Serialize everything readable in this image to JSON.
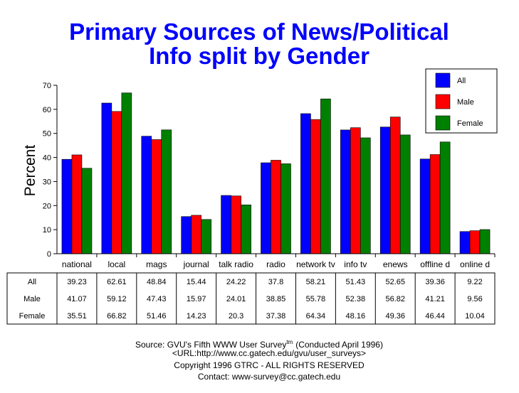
{
  "chart_data": {
    "type": "bar",
    "title_line1": "Primary Sources of News/Political",
    "title_line2": "Info split by Gender",
    "ylabel": "Percent",
    "ylim": [
      0,
      70
    ],
    "yticks": [
      0,
      10,
      20,
      30,
      40,
      50,
      60,
      70
    ],
    "legend_position": "top-right",
    "categories": [
      "national",
      "local",
      "mags",
      "journal",
      "talk radio",
      "radio",
      "network tv",
      "info tv",
      "enews",
      "offline d",
      "online d"
    ],
    "series": [
      {
        "name": "All",
        "color": "#0000ff",
        "values": [
          39.23,
          62.61,
          48.84,
          15.44,
          24.22,
          37.8,
          58.21,
          51.43,
          52.65,
          39.36,
          9.22
        ]
      },
      {
        "name": "Male",
        "color": "#ff0000",
        "values": [
          41.07,
          59.12,
          47.43,
          15.97,
          24.01,
          38.85,
          55.78,
          52.38,
          56.82,
          41.21,
          9.56
        ]
      },
      {
        "name": "Female",
        "color": "#008000",
        "values": [
          35.51,
          66.82,
          51.46,
          14.23,
          20.3,
          37.38,
          64.34,
          48.16,
          49.36,
          46.44,
          10.04
        ]
      }
    ]
  },
  "source": {
    "line1": "Source: GVU's Fifth WWW User Survey",
    "tm": "tm",
    "line1b": "(Conducted April 1996)",
    "line2": "<URL:http://www.cc.gatech.edu/gvu/user_surveys>",
    "line3": "Copyright 1996 GTRC -  ALL RIGHTS RESERVED",
    "line4": "Contact: www-survey@cc.gatech.edu"
  }
}
